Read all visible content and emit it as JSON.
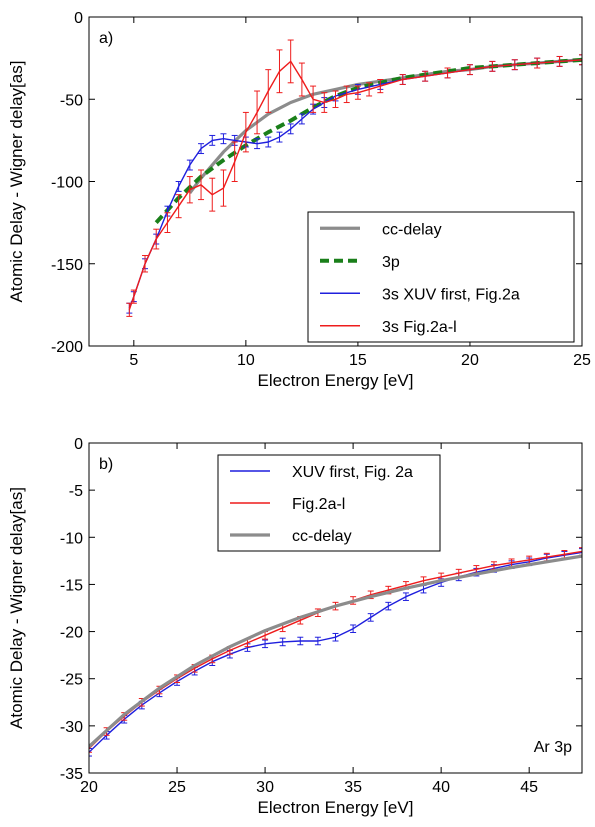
{
  "chart_data": [
    {
      "type": "line",
      "panel_label": "a)",
      "xlabel": "Electron Energy [eV]",
      "ylabel": "Atomic Delay - Wigner delay[as]",
      "xlim": [
        3,
        25
      ],
      "ylim": [
        -200,
        0
      ],
      "xticks": [
        5,
        10,
        15,
        20,
        25
      ],
      "yticks": [
        0,
        -50,
        -100,
        -150,
        -200
      ],
      "grid": false,
      "legend_position": "lower-right",
      "series": [
        {
          "name": "cc-delay",
          "color": "#8c8c8c",
          "style": "solid-thick",
          "errorbars": false,
          "x": [
            7.5,
            8,
            9,
            10,
            11,
            12,
            13,
            14,
            15,
            16,
            17,
            18,
            19,
            20,
            21,
            22,
            23,
            24,
            25
          ],
          "y": [
            -107,
            -98,
            -82,
            -69,
            -59,
            -52,
            -47,
            -44,
            -41,
            -39,
            -37,
            -35,
            -33,
            -32,
            -30,
            -29,
            -28,
            -27,
            -26
          ]
        },
        {
          "name": "3p",
          "color": "#1a7f1a",
          "style": "dashed-thick",
          "errorbars": false,
          "x": [
            6,
            7,
            8,
            9,
            10,
            11,
            12,
            13,
            14,
            15,
            16,
            17,
            18,
            19,
            20,
            21,
            22,
            23,
            24,
            25
          ],
          "y": [
            -125,
            -110,
            -97,
            -87,
            -78,
            -70,
            -63,
            -55,
            -48,
            -43,
            -40,
            -37,
            -35,
            -33,
            -31,
            -30,
            -29,
            -28,
            -27,
            -26
          ]
        },
        {
          "name": "3s XUV first, Fig.2a",
          "color": "#1f1fdd",
          "style": "solid",
          "errorbars": true,
          "x": [
            4.8,
            5,
            5.5,
            6,
            6.5,
            7,
            7.5,
            8,
            8.5,
            9,
            9.5,
            10,
            10.5,
            11,
            11.5,
            12,
            12.5,
            13,
            13.5,
            14,
            15,
            16,
            17,
            18,
            19,
            20,
            21,
            22,
            23,
            24,
            25
          ],
          "y": [
            -177,
            -170,
            -150,
            -135,
            -118,
            -103,
            -90,
            -80,
            -75,
            -74,
            -75,
            -76,
            -77,
            -76,
            -73,
            -68,
            -62,
            -56,
            -52,
            -48,
            -44,
            -41,
            -38,
            -36,
            -34,
            -32,
            -30,
            -29,
            -28,
            -27,
            -26
          ],
          "err": [
            3,
            3,
            3,
            3,
            3,
            3,
            3,
            3,
            3,
            3,
            3,
            3,
            3,
            3,
            3,
            3,
            3,
            3,
            3,
            3,
            3,
            3,
            3,
            3,
            3,
            3,
            3,
            3,
            3,
            3,
            3
          ]
        },
        {
          "name": "3s Fig.2a-l",
          "color": "#ee1c1c",
          "style": "solid",
          "errorbars": true,
          "x": [
            4.8,
            5,
            5.5,
            6,
            6.5,
            7,
            7.5,
            8,
            8.5,
            9,
            9.5,
            10,
            10.5,
            11,
            11.5,
            12,
            12.5,
            13,
            13.5,
            14,
            14.5,
            15,
            15.5,
            16,
            17,
            18,
            19,
            20,
            21,
            22,
            23,
            24,
            25
          ],
          "y": [
            -178,
            -170,
            -150,
            -135,
            -125,
            -115,
            -105,
            -102,
            -108,
            -104,
            -88,
            -70,
            -58,
            -45,
            -33,
            -27,
            -38,
            -50,
            -52,
            -50,
            -47,
            -46,
            -44,
            -42,
            -38,
            -36,
            -34,
            -32,
            -30,
            -29,
            -28,
            -27,
            -26
          ],
          "err": [
            4,
            4,
            5,
            6,
            6,
            7,
            8,
            9,
            10,
            11,
            12,
            12,
            13,
            13,
            13,
            13,
            10,
            8,
            6,
            5,
            5,
            4,
            4,
            4,
            3,
            3,
            3,
            3,
            3,
            3,
            3,
            3,
            3
          ]
        }
      ]
    },
    {
      "type": "line",
      "panel_label": "b)",
      "annotation": "Ar 3p",
      "xlabel": "Electron Energy [eV]",
      "ylabel": "Atomic Delay - Wigner delay[as]",
      "xlim": [
        20,
        48
      ],
      "ylim": [
        -35,
        0
      ],
      "xticks": [
        20,
        25,
        30,
        35,
        40,
        45
      ],
      "yticks": [
        0,
        -5,
        -10,
        -15,
        -20,
        -25,
        -30,
        -35
      ],
      "grid": false,
      "legend_position": "top-center",
      "series": [
        {
          "name": "XUV first, Fig. 2a",
          "color": "#1f1fdd",
          "style": "solid",
          "errorbars": true,
          "x": [
            20,
            21,
            22,
            23,
            24,
            25,
            26,
            27,
            28,
            29,
            30,
            31,
            32,
            33,
            34,
            35,
            36,
            37,
            38,
            39,
            40,
            41,
            42,
            43,
            44,
            45,
            46,
            47,
            48
          ],
          "y": [
            -32.8,
            -31.0,
            -29.3,
            -27.8,
            -26.5,
            -25.3,
            -24.2,
            -23.2,
            -22.4,
            -21.7,
            -21.3,
            -21.1,
            -21.0,
            -21.0,
            -20.6,
            -19.7,
            -18.5,
            -17.3,
            -16.3,
            -15.5,
            -14.8,
            -14.2,
            -13.7,
            -13.3,
            -12.9,
            -12.6,
            -12.2,
            -11.9,
            -11.6
          ],
          "err": [
            0.4,
            0.4,
            0.4,
            0.4,
            0.4,
            0.4,
            0.4,
            0.4,
            0.4,
            0.4,
            0.4,
            0.4,
            0.4,
            0.4,
            0.4,
            0.4,
            0.4,
            0.4,
            0.4,
            0.4,
            0.4,
            0.4,
            0.4,
            0.4,
            0.4,
            0.4,
            0.4,
            0.4,
            0.4
          ]
        },
        {
          "name": "Fig.2a-l",
          "color": "#ee1c1c",
          "style": "solid",
          "errorbars": true,
          "x": [
            20,
            21,
            22,
            23,
            24,
            25,
            26,
            27,
            28,
            29,
            30,
            31,
            32,
            33,
            34,
            35,
            36,
            37,
            38,
            39,
            40,
            41,
            42,
            43,
            44,
            45,
            46,
            47,
            48
          ],
          "y": [
            -32.4,
            -30.6,
            -29.0,
            -27.5,
            -26.2,
            -25.0,
            -23.9,
            -22.9,
            -22.0,
            -21.2,
            -20.4,
            -19.6,
            -18.8,
            -18.0,
            -17.3,
            -16.7,
            -16.1,
            -15.6,
            -15.1,
            -14.6,
            -14.2,
            -13.8,
            -13.4,
            -13.0,
            -12.7,
            -12.4,
            -12.1,
            -11.8,
            -11.5
          ],
          "err": [
            0.4,
            0.4,
            0.4,
            0.4,
            0.4,
            0.4,
            0.4,
            0.4,
            0.4,
            0.4,
            0.4,
            0.4,
            0.4,
            0.4,
            0.4,
            0.4,
            0.4,
            0.4,
            0.4,
            0.4,
            0.4,
            0.4,
            0.4,
            0.4,
            0.4,
            0.4,
            0.4,
            0.4,
            0.4
          ]
        },
        {
          "name": "cc-delay",
          "color": "#8c8c8c",
          "style": "solid-thick",
          "errorbars": false,
          "x": [
            20,
            22,
            24,
            26,
            28,
            30,
            32,
            34,
            36,
            38,
            40,
            42,
            44,
            46,
            48
          ],
          "y": [
            -32.2,
            -28.8,
            -26.0,
            -23.6,
            -21.6,
            -19.9,
            -18.5,
            -17.3,
            -16.3,
            -15.4,
            -14.6,
            -13.9,
            -13.2,
            -12.6,
            -12.0
          ]
        }
      ]
    }
  ]
}
